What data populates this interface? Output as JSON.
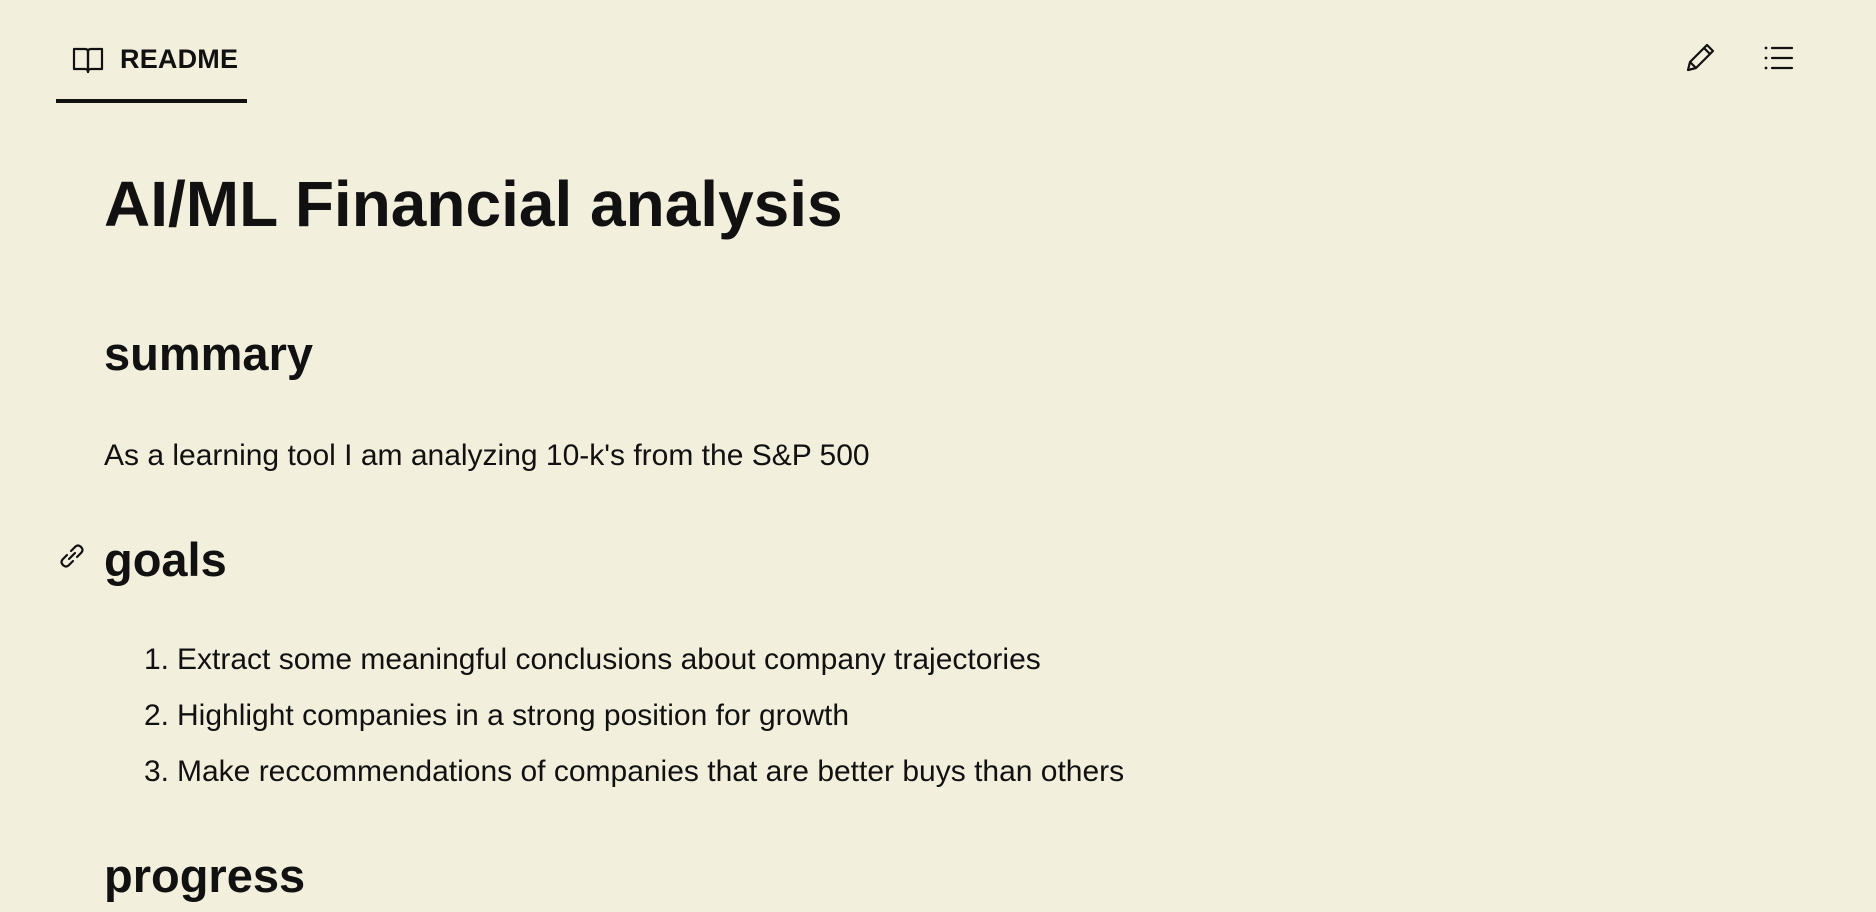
{
  "tab": {
    "label": "README",
    "icon": "book-icon"
  },
  "toolbar": {
    "edit_icon": "pencil-icon",
    "toc_icon": "list-icon"
  },
  "document": {
    "title": "AI/ML Financial analysis",
    "sections": {
      "summary": {
        "heading": "summary",
        "text": "As a learning tool I am analyzing 10-k's from the S&P 500"
      },
      "goals": {
        "heading": "goals",
        "anchor_icon": "link-icon",
        "items": [
          {
            "num": "1.",
            "text": "Extract some meaningful conclusions about company trajectories"
          },
          {
            "num": "2.",
            "text": "Highlight companies in a strong position for growth"
          },
          {
            "num": "3.",
            "text": "Make reccommendations of companies that are better buys than others"
          }
        ]
      },
      "progress": {
        "heading": "progress"
      }
    }
  },
  "colors": {
    "background": "#f2efdd",
    "text": "#111111"
  }
}
